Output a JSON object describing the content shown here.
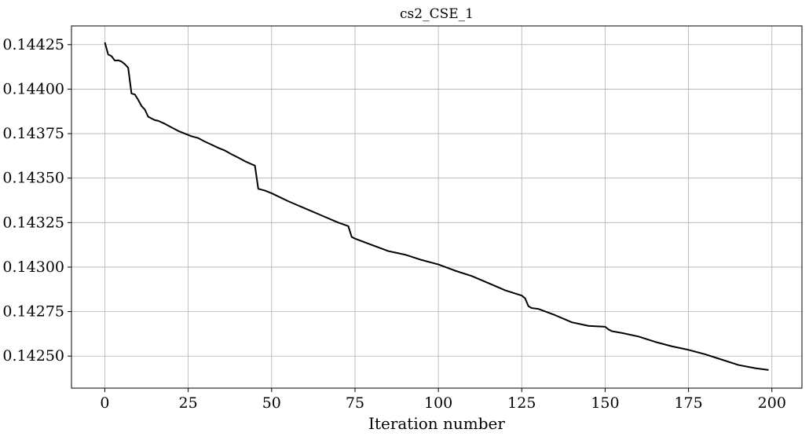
{
  "chart_data": {
    "type": "line",
    "title": "cs2_CSE_1",
    "xlabel": "Iteration number",
    "ylabel": "",
    "xlim": [
      -10,
      209
    ],
    "ylim": [
      0.14232,
      0.144355
    ],
    "xticks": [
      0,
      25,
      50,
      75,
      100,
      125,
      150,
      175,
      200
    ],
    "yticks": [
      0.1425,
      0.14275,
      0.143,
      0.14325,
      0.1435,
      0.14375,
      0.144,
      0.14425
    ],
    "xtick_labels": [
      "0",
      "25",
      "50",
      "75",
      "100",
      "125",
      "150",
      "175",
      "200"
    ],
    "ytick_labels": [
      "0.14250",
      "0.14275",
      "0.14300",
      "0.14325",
      "0.14350",
      "0.14375",
      "0.14400",
      "0.14425"
    ],
    "grid": true,
    "series": [
      {
        "color": "#000000",
        "x": [
          0,
          1,
          2,
          3,
          4,
          5,
          6,
          7,
          8,
          9,
          10,
          11,
          12,
          13,
          14,
          15,
          16,
          18,
          20,
          22,
          24,
          26,
          28,
          30,
          32,
          34,
          36,
          38,
          40,
          42,
          44,
          45,
          46,
          48,
          50,
          55,
          60,
          65,
          70,
          73,
          74,
          75,
          80,
          85,
          90,
          95,
          100,
          105,
          110,
          115,
          120,
          125,
          126,
          127,
          128,
          130,
          135,
          140,
          145,
          150,
          151,
          152,
          155,
          160,
          165,
          170,
          175,
          180,
          185,
          190,
          195,
          199
        ],
        "y": [
          0.144263,
          0.144195,
          0.144185,
          0.14416,
          0.144162,
          0.144155,
          0.14414,
          0.14412,
          0.143975,
          0.14397,
          0.14394,
          0.143905,
          0.143885,
          0.143845,
          0.143835,
          0.143826,
          0.143822,
          0.143805,
          0.143785,
          0.143765,
          0.14375,
          0.143735,
          0.143725,
          0.143705,
          0.143688,
          0.14367,
          0.143655,
          0.143634,
          0.143615,
          0.143595,
          0.143578,
          0.14357,
          0.14344,
          0.14343,
          0.143415,
          0.14337,
          0.14333,
          0.14329,
          0.14325,
          0.14323,
          0.14317,
          0.14316,
          0.143125,
          0.14309,
          0.14307,
          0.14304,
          0.143015,
          0.14298,
          0.14295,
          0.14291,
          0.14287,
          0.14284,
          0.142825,
          0.14278,
          0.14277,
          0.142765,
          0.14273,
          0.14269,
          0.14267,
          0.142665,
          0.14265,
          0.14264,
          0.14263,
          0.14261,
          0.14258,
          0.142555,
          0.142535,
          0.14251,
          0.14248,
          0.14245,
          0.142432,
          0.142422
        ]
      }
    ]
  }
}
